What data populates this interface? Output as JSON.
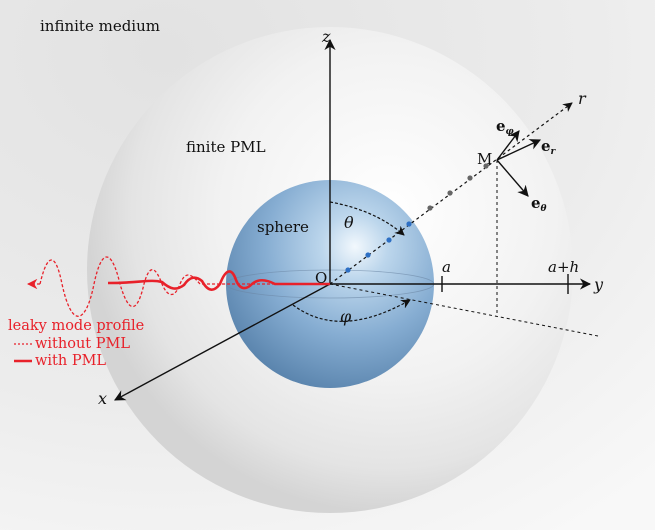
{
  "labels": {
    "outer": "infinite medium",
    "pml": "finite PML",
    "sphere": "sphere",
    "origin": "O",
    "point_m": "M",
    "axis_x": "x",
    "axis_y": "y",
    "axis_z": "z",
    "axis_r": "r",
    "theta": "θ",
    "phi": "φ",
    "radius_a": "a",
    "radius_ah": "a+h",
    "e_r": "e",
    "e_r_sub": "r",
    "e_theta": "e",
    "e_theta_sub": "θ",
    "e_phi": "e",
    "e_phi_sub": "φ"
  },
  "legend": {
    "title": "leaky mode profile",
    "without": "without PML",
    "with": "with PML"
  },
  "colors": {
    "mode": "#e8212a",
    "sphere": "#6f9cc7",
    "pml": "#d9d9d9",
    "background": "#ededed"
  }
}
